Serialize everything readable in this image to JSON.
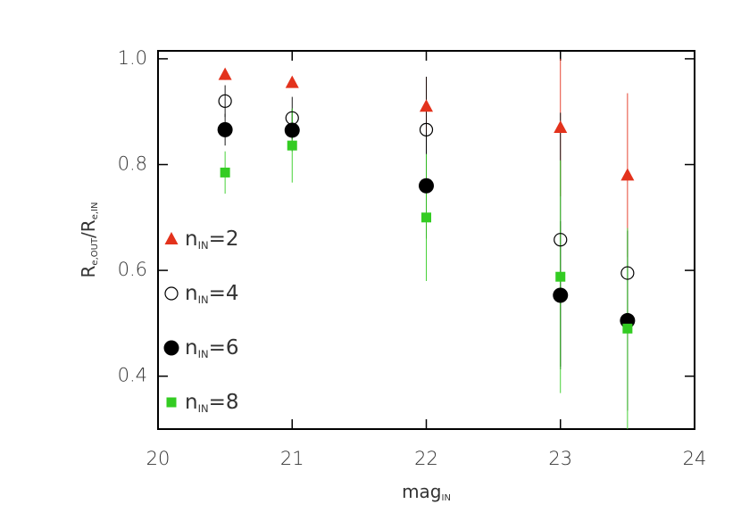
{
  "chart_data": {
    "type": "scatter",
    "x_label": [
      "mag",
      "IN"
    ],
    "y_label": [
      "R",
      "e,OUT",
      "/R",
      "e,IN"
    ],
    "xlim": [
      20,
      24
    ],
    "ylim": [
      0.3,
      1.015
    ],
    "xticks": [
      20,
      21,
      22,
      23,
      24
    ],
    "yticks": [
      0.4,
      0.6,
      0.8,
      {
        "value": 1,
        "label": "1.0"
      }
    ],
    "x": [
      20.5,
      21,
      22,
      23,
      23.5
    ],
    "series": [
      {
        "name": [
          "n",
          "IN",
          "=2"
        ],
        "marker": "triangle",
        "color": "#e3321c",
        "values": [
          0.97,
          0.955,
          0.91,
          0.87,
          0.78
        ],
        "errors": [
          0.01,
          0.01,
          0.055,
          0.13,
          0.155
        ]
      },
      {
        "name": [
          "n",
          "IN",
          "=4"
        ],
        "marker": "open-circle",
        "color": "#000000",
        "values": [
          0.92,
          0.888,
          0.866,
          0.658,
          0.595
        ],
        "errors": [
          0.03,
          0.04,
          0.1,
          0.24,
          0.08
        ]
      },
      {
        "name": [
          "n",
          "IN",
          "=6"
        ],
        "marker": "circle",
        "color": "#000000",
        "values": [
          0.866,
          0.865,
          0.76,
          0.553,
          0.505
        ],
        "errors": [
          0.03,
          0.04,
          0.1,
          0.14,
          0.17
        ]
      },
      {
        "name": [
          "n",
          "IN",
          "=8"
        ],
        "marker": "square",
        "color": "#33cc22",
        "values": [
          0.785,
          0.836,
          0.7,
          0.588,
          0.49
        ],
        "errors": [
          0.04,
          0.07,
          0.12,
          0.22,
          0.19
        ]
      }
    ]
  }
}
